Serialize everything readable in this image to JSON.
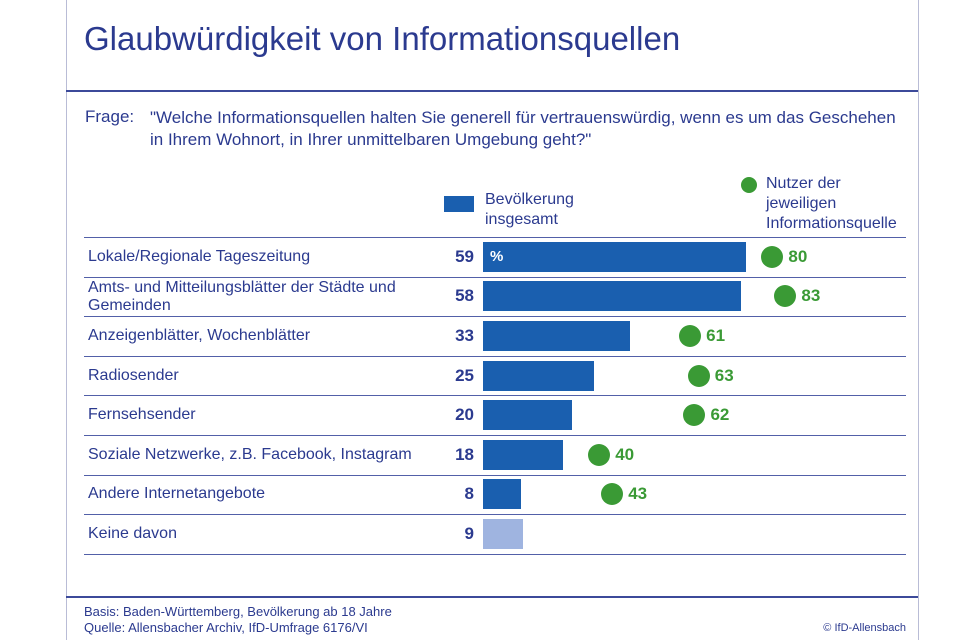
{
  "title": "Glaubwürdigkeit von Informationsquellen",
  "question_label": "Frage:",
  "question": "\"Welche Informationsquellen halten Sie generell für vertrauenswürdig, wenn es um das Geschehen in Ihrem Wohnort, in Ihrer unmittelbaren Umgebung geht?\"",
  "legend_total_line1": "Bevölkerung",
  "legend_total_line2": "insgesamt",
  "legend_users_line1": "Nutzer der",
  "legend_users_line2": "jeweiligen",
  "legend_users_line3": "Informationsquelle",
  "percent_sign": "%",
  "footer_basis": "Basis: Baden-Württemberg, Bevölkerung ab 18 Jahre",
  "footer_source": "Quelle: Allensbacher Archiv, IfD-Umfrage 6176/VI",
  "copyright": "© IfD-Allensbach",
  "colors": {
    "bar": "#1a5faf",
    "bar_light": "#9fb4e0",
    "users": "#3a9a35",
    "text": "#2b3a8f"
  },
  "chart_data": {
    "type": "bar",
    "orientation": "horizontal",
    "categories": [
      "Lokale/Regionale Tageszeitung",
      "Amts- und Mitteilungsblätter der Städte und Gemeinden",
      "Anzeigenblätter, Wochenblätter",
      "Radiosender",
      "Fernsehsender",
      "Soziale Netzwerke, z.B. Facebook, Instagram",
      "Andere Internetangebote",
      "Keine davon"
    ],
    "series": [
      {
        "name": "Bevölkerung insgesamt",
        "values": [
          59,
          58,
          33,
          25,
          20,
          18,
          8,
          9
        ]
      },
      {
        "name": "Nutzer der jeweiligen Informationsquelle",
        "values": [
          80,
          83,
          61,
          63,
          62,
          40,
          43,
          null
        ]
      }
    ],
    "unit": "%"
  }
}
